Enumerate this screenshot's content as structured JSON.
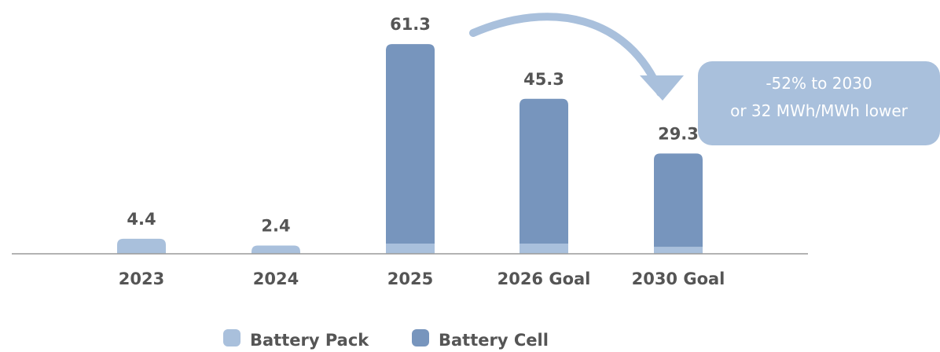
{
  "chart_data": {
    "type": "bar",
    "stacked": true,
    "categories": [
      "2023",
      "2024",
      "2025",
      "2026 Goal",
      "2030 Goal"
    ],
    "totals": [
      "4.4",
      "2.4",
      "61.3",
      "45.3",
      "29.3"
    ],
    "series": [
      {
        "name": "Battery Pack",
        "values": [
          4.4,
          2.4,
          3.0,
          3.0,
          2.0
        ],
        "color": "#a9c0dc"
      },
      {
        "name": "Battery Cell",
        "values": [
          0,
          0,
          58.3,
          42.3,
          27.3
        ],
        "color": "#7795bd"
      }
    ],
    "ylim": [
      0,
      65
    ],
    "grid": false,
    "legend_position": "bottom",
    "annotation": {
      "lines": [
        "-52% to 2030",
        "or 32 MWh/MWh lower"
      ],
      "color": "#a9c0dc"
    }
  }
}
